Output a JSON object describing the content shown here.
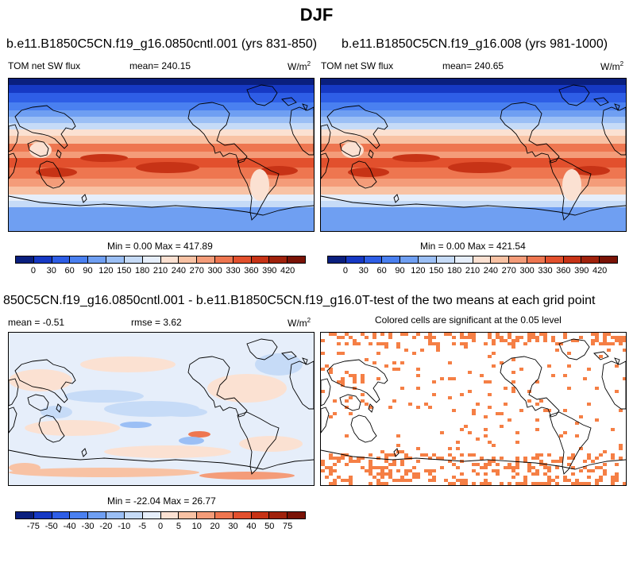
{
  "title": "DJF",
  "panels": {
    "p1": {
      "title": "b.e11.B1850C5CN.f19_g16.0850cntl.001 (yrs 831-850)",
      "variable": "TOM net SW flux",
      "mean": "mean= 240.15",
      "units": "W/m",
      "units_sup": "2",
      "minmax": "Min =   0.00 Max = 417.89"
    },
    "p2": {
      "title": "b.e11.B1850C5CN.f19_g16.008 (yrs 981-1000)",
      "variable": "TOM net SW flux",
      "mean": "mean= 240.65",
      "units": "W/m",
      "units_sup": "2",
      "minmax": "Min =   0.00 Max = 421.54"
    },
    "p3": {
      "title": "850C5CN.f19_g16.0850cntl.001 - b.e11.B1850C5CN.f19_g16.008",
      "mean": "mean =  -0.51",
      "rmse": "rmse =   3.62",
      "units": "W/m",
      "units_sup": "2",
      "minmax": "Min = -22.04 Max =  26.77"
    },
    "p4": {
      "title": "T-test of the two means at each grid point",
      "subtitle": "Colored cells are significant at the 0.05 level"
    }
  },
  "colorbar_abs": {
    "colors": [
      "#0a1f7e",
      "#1639c4",
      "#2e5ee6",
      "#4a80f0",
      "#6f9ff2",
      "#9bbff5",
      "#c6dbf7",
      "#e6eefa",
      "#fbe1d2",
      "#f8c2a4",
      "#f49c79",
      "#ee7650",
      "#e2502d",
      "#c73316",
      "#a0220c",
      "#7a1306"
    ],
    "labels": [
      "0",
      "30",
      "60",
      "90",
      "120",
      "150",
      "180",
      "210",
      "240",
      "270",
      "300",
      "330",
      "360",
      "390",
      "420"
    ]
  },
  "colorbar_diff": {
    "colors": [
      "#0a1f7e",
      "#1639c4",
      "#2e5ee6",
      "#4a80f0",
      "#6f9ff2",
      "#9bbff5",
      "#c6dbf7",
      "#e6eefa",
      "#fbe1d2",
      "#f8c2a4",
      "#f49c79",
      "#ee7650",
      "#e2502d",
      "#c73316",
      "#a0220c",
      "#7a1306"
    ],
    "labels": [
      "-75",
      "-50",
      "-40",
      "-30",
      "-20",
      "-10",
      "-5",
      "0",
      "5",
      "10",
      "20",
      "30",
      "40",
      "50",
      "75"
    ]
  }
}
